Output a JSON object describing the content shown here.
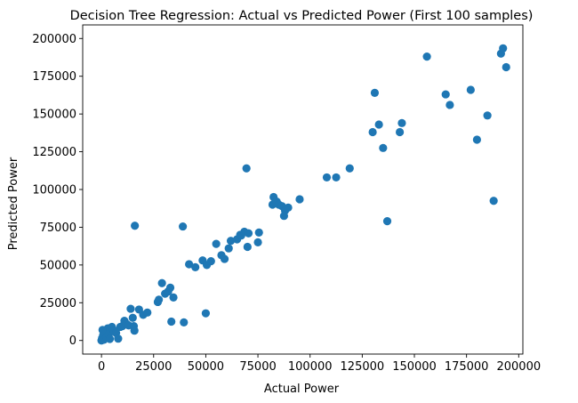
{
  "chart_data": {
    "type": "scatter",
    "title": "Decision Tree Regression: Actual vs Predicted Power (First 100 samples)",
    "xlabel": "Actual Power",
    "ylabel": "Predicted Power",
    "xlim": [
      -9000,
      202000
    ],
    "ylim": [
      -9000,
      209000
    ],
    "xticks": [
      0,
      25000,
      50000,
      75000,
      100000,
      125000,
      150000,
      175000,
      200000
    ],
    "yticks": [
      0,
      25000,
      50000,
      75000,
      100000,
      125000,
      150000,
      175000,
      200000
    ],
    "grid": false,
    "color": "#1f77b4",
    "series": [
      {
        "name": "",
        "points": [
          [
            0,
            0
          ],
          [
            300,
            1500
          ],
          [
            800,
            3500
          ],
          [
            1200,
            500
          ],
          [
            1800,
            6000
          ],
          [
            2500,
            2000
          ],
          [
            3000,
            8000
          ],
          [
            3500,
            4000
          ],
          [
            500,
            7000
          ],
          [
            4000,
            1000
          ],
          [
            5000,
            9000
          ],
          [
            6000,
            6500
          ],
          [
            7000,
            5000
          ],
          [
            8000,
            1200
          ],
          [
            9000,
            9000
          ],
          [
            10000,
            9500
          ],
          [
            11000,
            13000
          ],
          [
            12000,
            11000
          ],
          [
            13000,
            10000
          ],
          [
            14000,
            21000
          ],
          [
            15000,
            15000
          ],
          [
            15500,
            9500
          ],
          [
            15800,
            6500
          ],
          [
            16000,
            76000
          ],
          [
            18000,
            20500
          ],
          [
            20000,
            17000
          ],
          [
            22000,
            18500
          ],
          [
            27000,
            25500
          ],
          [
            27500,
            27000
          ],
          [
            29000,
            38000
          ],
          [
            30500,
            31000
          ],
          [
            32000,
            32500
          ],
          [
            33000,
            35000
          ],
          [
            33500,
            12500
          ],
          [
            34500,
            28500
          ],
          [
            39000,
            75500
          ],
          [
            39500,
            12000
          ],
          [
            42000,
            50500
          ],
          [
            45000,
            48500
          ],
          [
            48500,
            53000
          ],
          [
            50000,
            18000
          ],
          [
            50500,
            50000
          ],
          [
            52500,
            52500
          ],
          [
            55000,
            64000
          ],
          [
            57500,
            56500
          ],
          [
            59000,
            54000
          ],
          [
            61000,
            61000
          ],
          [
            62000,
            66000
          ],
          [
            65000,
            67000
          ],
          [
            66500,
            70000
          ],
          [
            67000,
            69500
          ],
          [
            68500,
            72000
          ],
          [
            69500,
            114000
          ],
          [
            70000,
            62000
          ],
          [
            70500,
            71000
          ],
          [
            75000,
            65000
          ],
          [
            75500,
            71500
          ],
          [
            82000,
            90000
          ],
          [
            82500,
            95000
          ],
          [
            83000,
            91000
          ],
          [
            84000,
            92000
          ],
          [
            85000,
            90000
          ],
          [
            86500,
            89000
          ],
          [
            87500,
            82500
          ],
          [
            88000,
            86000
          ],
          [
            89500,
            88000
          ],
          [
            95000,
            93500
          ],
          [
            108000,
            108000
          ],
          [
            112500,
            108000
          ],
          [
            119000,
            114000
          ],
          [
            130000,
            138000
          ],
          [
            131000,
            164000
          ],
          [
            133000,
            143000
          ],
          [
            135000,
            127500
          ],
          [
            137000,
            79000
          ],
          [
            143000,
            138000
          ],
          [
            144000,
            144000
          ],
          [
            156000,
            188000
          ],
          [
            165000,
            163000
          ],
          [
            167000,
            156000
          ],
          [
            177000,
            166000
          ],
          [
            180000,
            133000
          ],
          [
            185000,
            149000
          ],
          [
            188000,
            92500
          ],
          [
            191500,
            190000
          ],
          [
            192500,
            193500
          ],
          [
            194000,
            181000
          ]
        ]
      }
    ]
  }
}
